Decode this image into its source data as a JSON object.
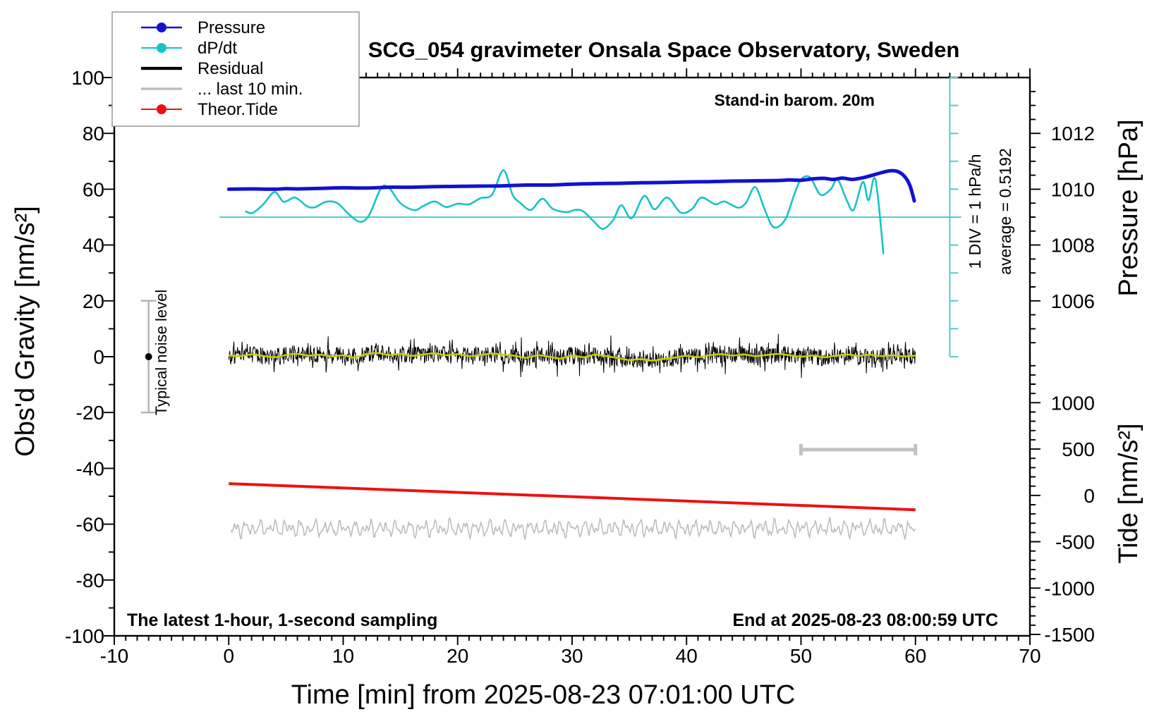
{
  "title": "SCG_054 gravimeter Onsala Space Observatory, Sweden",
  "axes": {
    "x": {
      "label": "Time [min] from 2025-08-23 07:01:00 UTC",
      "min": -10,
      "max": 70,
      "major_ticks": [
        -10,
        0,
        10,
        20,
        30,
        40,
        50,
        60,
        70
      ],
      "tick_labels": [
        "-10",
        "0",
        "10",
        "20",
        "30",
        "40",
        "50",
        "60",
        "70"
      ],
      "minor_step": 1
    },
    "y_left": {
      "label": "Obs'd Gravity [nm/s²]",
      "min": -100,
      "max": 100,
      "major_ticks": [
        -100,
        -80,
        -60,
        -40,
        -20,
        0,
        20,
        40,
        60,
        80,
        100
      ],
      "tick_labels": [
        "-100",
        "-80",
        "-60",
        "-40",
        "-20",
        "0",
        "20",
        "40",
        "60",
        "80",
        "100"
      ],
      "minor_step": 10
    },
    "y_right_pressure": {
      "label": "Pressure [hPa]",
      "major_ticks": [
        1012,
        1010,
        1008,
        1006
      ],
      "tick_labels": [
        "1012",
        "1010",
        "1008",
        "1006"
      ],
      "minor_step_hpa": 0.5,
      "map": {
        "ref_hpa": 1010,
        "ref_gravity": 60,
        "gravity_per_hpa": 10
      }
    },
    "y_right_tide": {
      "label": "Tide [nm/s²]",
      "major_ticks": [
        1000,
        500,
        0,
        -500,
        -1000,
        -1500
      ],
      "tick_labels": [
        "1000",
        "500",
        "0",
        "-500",
        "-1000",
        "-1500"
      ],
      "minor_step": 100,
      "map": {
        "ref_tide": 0,
        "ref_gravity": -49.7,
        "gravity_per_unit": 0.0332
      }
    }
  },
  "legend": {
    "entries": [
      {
        "label": "Pressure",
        "color": "#1212cf",
        "marker": true,
        "width": 2.4
      },
      {
        "label": "dP/dt",
        "color": "#17c4c4",
        "marker": true,
        "width": 2.2
      },
      {
        "label": "Residual",
        "color": "#000000",
        "marker": false,
        "width": 4.2
      },
      {
        "label": "... last 10 min.",
        "color": "#bdbdbd",
        "marker": false,
        "width": 3.6
      },
      {
        "label": "Theor.Tide",
        "color": "#ee1111",
        "marker": true,
        "width": 2.0
      }
    ]
  },
  "annotations": {
    "barometer_note": "Stand-in barom. 20m",
    "div_scale": "1 DIV = 1 hPa/h",
    "average": "average = 0.5192",
    "noise_level": "Typical noise level",
    "sampling_note": "The latest 1-hour, 1-second sampling",
    "end_time": "End at 2025-08-23 08:00:59 UTC"
  },
  "colors": {
    "pressure": "#1212cf",
    "dpdt": "#17c4c4",
    "dpdt_reference": "#58caca",
    "residual": "#000000",
    "residual_smooth": "#c9cd00",
    "last10": "#bdbdbd",
    "tide": "#ee1111",
    "gray_marker": "#c2c2c2",
    "axis": "#000000"
  },
  "chart_data": {
    "type": "line",
    "xlabel": "Time [min] from 2025-08-23 07:01:00 UTC",
    "title": "SCG_054 gravimeter Onsala Space Observatory, Sweden",
    "x_range_min": [
      -10,
      70
    ],
    "gravity_range": [
      -100,
      100
    ],
    "grid": false,
    "legend_position": "top-left",
    "series": [
      {
        "name": "Pressure",
        "unit": "hPa",
        "axis": "pressure",
        "points": [
          [
            0,
            1010.0
          ],
          [
            2,
            1010.01
          ],
          [
            4,
            1010.0
          ],
          [
            5,
            1010.02
          ],
          [
            6,
            1010.01
          ],
          [
            8,
            1010.03
          ],
          [
            10,
            1010.05
          ],
          [
            12,
            1010.04
          ],
          [
            14,
            1010.07
          ],
          [
            16,
            1010.07
          ],
          [
            18,
            1010.09
          ],
          [
            20,
            1010.1
          ],
          [
            22,
            1010.11
          ],
          [
            24,
            1010.12
          ],
          [
            26,
            1010.15
          ],
          [
            28,
            1010.15
          ],
          [
            30,
            1010.18
          ],
          [
            32,
            1010.2
          ],
          [
            34,
            1010.21
          ],
          [
            36,
            1010.23
          ],
          [
            38,
            1010.24
          ],
          [
            40,
            1010.26
          ],
          [
            42,
            1010.27
          ],
          [
            44,
            1010.29
          ],
          [
            46,
            1010.3
          ],
          [
            48,
            1010.31
          ],
          [
            49,
            1010.33
          ],
          [
            50,
            1010.32
          ],
          [
            51,
            1010.37
          ],
          [
            52,
            1010.39
          ],
          [
            52.8,
            1010.35
          ],
          [
            53.6,
            1010.4
          ],
          [
            54.4,
            1010.35
          ],
          [
            55,
            1010.38
          ],
          [
            55.6,
            1010.43
          ],
          [
            56.4,
            1010.52
          ],
          [
            57,
            1010.59
          ],
          [
            57.8,
            1010.66
          ],
          [
            58.4,
            1010.64
          ],
          [
            59,
            1010.48
          ],
          [
            59.5,
            1010.15
          ],
          [
            59.9,
            1009.58
          ]
        ]
      },
      {
        "name": "dP/dt",
        "unit": "hPa/h",
        "axis": "dpdt",
        "zero_reference_gravity": 50,
        "div_gravity_units": 10,
        "average": 0.5192,
        "points": [
          [
            1.5,
            0.2
          ],
          [
            2.1,
            0.15
          ],
          [
            3,
            0.45
          ],
          [
            4,
            0.9
          ],
          [
            4.8,
            0.55
          ],
          [
            5.8,
            0.7
          ],
          [
            6.8,
            0.4
          ],
          [
            7.5,
            0.35
          ],
          [
            8.5,
            0.55
          ],
          [
            9.5,
            0.5
          ],
          [
            10.5,
            0.1
          ],
          [
            11.5,
            -0.17
          ],
          [
            12.3,
            0.1
          ],
          [
            13.3,
            1.03
          ],
          [
            14,
            1.05
          ],
          [
            15,
            0.5
          ],
          [
            16.2,
            0.25
          ],
          [
            17,
            0.4
          ],
          [
            18,
            0.56
          ],
          [
            19,
            0.36
          ],
          [
            20,
            0.48
          ],
          [
            21,
            0.46
          ],
          [
            22,
            0.68
          ],
          [
            23,
            0.8
          ],
          [
            24,
            1.68
          ],
          [
            24.8,
            0.8
          ],
          [
            25.5,
            0.5
          ],
          [
            26.4,
            0.26
          ],
          [
            27.4,
            0.66
          ],
          [
            28.3,
            0.3
          ],
          [
            29.5,
            0.18
          ],
          [
            30.3,
            0.26
          ],
          [
            31,
            0.2
          ],
          [
            32,
            -0.2
          ],
          [
            32.7,
            -0.42
          ],
          [
            33.6,
            -0.1
          ],
          [
            34.3,
            0.43
          ],
          [
            35.2,
            -0.04
          ],
          [
            36.3,
            0.76
          ],
          [
            37.2,
            0.28
          ],
          [
            38.3,
            0.7
          ],
          [
            39.5,
            0.16
          ],
          [
            40.5,
            0.3
          ],
          [
            41.3,
            0.7
          ],
          [
            42.5,
            0.46
          ],
          [
            43.3,
            0.56
          ],
          [
            44.5,
            0.34
          ],
          [
            45.2,
            0.52
          ],
          [
            46,
            1.08
          ],
          [
            46.8,
            0.3
          ],
          [
            47.6,
            -0.36
          ],
          [
            48.6,
            -0.1
          ],
          [
            49.4,
            0.8
          ],
          [
            50,
            1.35
          ],
          [
            50.8,
            1.42
          ],
          [
            51.7,
            0.8
          ],
          [
            52.6,
            1.0
          ],
          [
            53.2,
            1.34
          ],
          [
            54,
            0.6
          ],
          [
            54.6,
            0.26
          ],
          [
            55.4,
            1.26
          ],
          [
            55.9,
            0.6
          ],
          [
            56.5,
            1.35
          ],
          [
            57.2,
            -1.3
          ]
        ]
      },
      {
        "name": "Theor.Tide",
        "unit": "nm/s²",
        "axis": "tide",
        "points": [
          [
            0,
            127
          ],
          [
            60,
            -155
          ]
        ]
      },
      {
        "name": "Residual smooth",
        "unit": "nm/s²",
        "axis": "gravity",
        "points": [
          [
            0,
            0.5
          ],
          [
            1,
            0.2
          ],
          [
            2,
            0.8
          ],
          [
            3,
            0.3
          ],
          [
            4,
            -0.2
          ],
          [
            5,
            0.6
          ],
          [
            6,
            1.0
          ],
          [
            7,
            0.4
          ],
          [
            8,
            0.7
          ],
          [
            9,
            0.1
          ],
          [
            10,
            0.5
          ],
          [
            11,
            -0.3
          ],
          [
            12,
            0.9
          ],
          [
            13,
            1.3
          ],
          [
            14,
            0.6
          ],
          [
            15,
            1.0
          ],
          [
            16,
            0.3
          ],
          [
            17,
            0.8
          ],
          [
            18,
            1.2
          ],
          [
            19,
            0.5
          ],
          [
            20,
            0.9
          ],
          [
            21,
            0.2
          ],
          [
            22,
            0.6
          ],
          [
            23,
            1.1
          ],
          [
            24,
            0.7
          ],
          [
            25,
            0.3
          ],
          [
            26,
            -0.4
          ],
          [
            27,
            0.5
          ],
          [
            28,
            0.0
          ],
          [
            29,
            -0.6
          ],
          [
            30,
            0.4
          ],
          [
            31,
            -0.2
          ],
          [
            32,
            0.7
          ],
          [
            33,
            0.2
          ],
          [
            34,
            -0.5
          ],
          [
            35,
            -1.2
          ],
          [
            36,
            -0.9
          ],
          [
            37,
            -1.4
          ],
          [
            38,
            -0.8
          ],
          [
            39,
            -0.3
          ],
          [
            40,
            0.3
          ],
          [
            41,
            -0.2
          ],
          [
            42,
            0.5
          ],
          [
            43,
            0.9
          ],
          [
            44,
            0.4
          ],
          [
            45,
            0.8
          ],
          [
            46,
            0.2
          ],
          [
            47,
            0.6
          ],
          [
            48,
            1.0
          ],
          [
            49,
            0.5
          ],
          [
            50,
            0.0
          ],
          [
            51,
            0.4
          ],
          [
            52,
            -0.2
          ],
          [
            53,
            0.3
          ],
          [
            54,
            0.8
          ],
          [
            55,
            0.3
          ],
          [
            56,
            0.7
          ],
          [
            57,
            0.2
          ],
          [
            58,
            0.5
          ],
          [
            59,
            0.1
          ],
          [
            60,
            0.4
          ]
        ]
      },
      {
        "name": "Residual",
        "unit": "nm/s²",
        "axis": "gravity",
        "type": "noise_spec",
        "t_start": 0,
        "t_end": 60,
        "step": 0.045,
        "seed": 77,
        "base_amplitude": 3.2,
        "spike_probability": 0.2,
        "spike_amplitude": 4.8
      },
      {
        "name": "... last 10 min.",
        "unit": "nm/s²",
        "axis": "gravity",
        "type": "oscillation_spec",
        "t_start": 0.2,
        "t_end": 60,
        "step": 0.08,
        "seed": 9,
        "center": -61.5,
        "amplitude": 3.0
      }
    ],
    "markers": {
      "noise_errorbar": {
        "t": -7,
        "center": 0,
        "half_range": 20
      },
      "last10_bar": {
        "t_start": 50,
        "t_end": 60,
        "gravity": -33.3
      },
      "dpdt_scalebar": {
        "t": 63,
        "gravity_top": 100,
        "gravity_bottom": 0,
        "tick_step": 10,
        "reference_gravity": 50,
        "reference_line_t_start": -0.8,
        "reference_line_t_end": 64
      }
    }
  }
}
